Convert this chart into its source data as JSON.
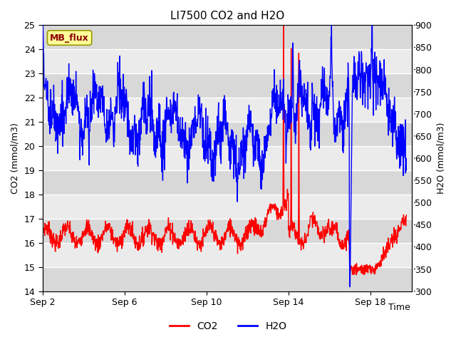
{
  "title": "LI7500 CO2 and H2O",
  "xlabel": "Time",
  "ylabel_left": "CO2 (mmol/m3)",
  "ylabel_right": "H2O (mmol/m3)",
  "ylim_left": [
    14.0,
    25.0
  ],
  "ylim_right": [
    300,
    900
  ],
  "yticks_left": [
    14.0,
    15.0,
    16.0,
    17.0,
    18.0,
    19.0,
    20.0,
    21.0,
    22.0,
    23.0,
    24.0,
    25.0
  ],
  "yticks_right": [
    300,
    350,
    400,
    450,
    500,
    550,
    600,
    650,
    700,
    750,
    800,
    850,
    900
  ],
  "xtick_labels": [
    "Sep 2",
    "Sep 6",
    "Sep 10",
    "Sep 14",
    "Sep 18"
  ],
  "xtick_days": [
    2,
    6,
    10,
    14,
    18
  ],
  "co2_color": "#FF0000",
  "h2o_color": "#0000FF",
  "background_color": "#FFFFFF",
  "plot_bg_color_light": "#EBEBEB",
  "plot_bg_color_dark": "#D8D8D8",
  "grid_color": "#FFFFFF",
  "annotation_text": "MB_flux",
  "annotation_bg": "#FFFF99",
  "annotation_border": "#CCCC00",
  "legend_co2": "CO2",
  "legend_h2o": "H2O",
  "title_fontsize": 11,
  "axis_label_fontsize": 9,
  "tick_fontsize": 9,
  "legend_fontsize": 10,
  "line_width": 1.0
}
